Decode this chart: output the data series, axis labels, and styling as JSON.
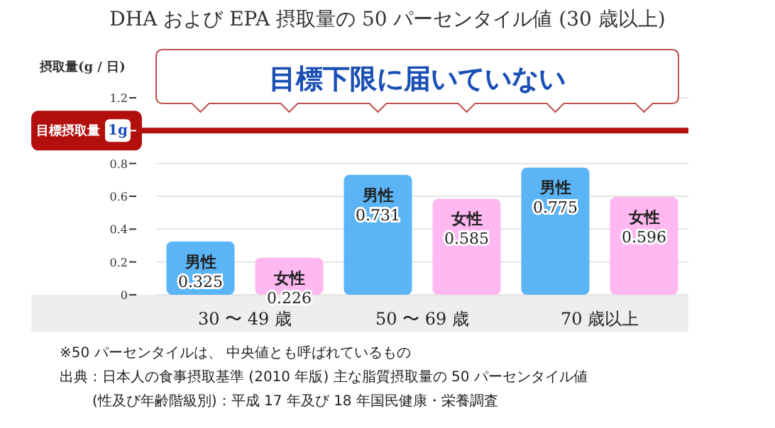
{
  "chart_data": {
    "type": "bar",
    "title": "DHA および EPA 摂取量の 50 パーセンタイル値 (30 歳以上)",
    "ylabel": "摂取量(g / 日)",
    "categories": [
      "30 〜 49 歳",
      "50 〜 69 歳",
      "70 歳以上"
    ],
    "series": [
      {
        "name": "男性",
        "color": "#5ab4f5",
        "values": [
          0.325,
          0.731,
          0.775
        ]
      },
      {
        "name": "女性",
        "color": "#ffb8f0",
        "values": [
          0.226,
          0.585,
          0.596
        ]
      }
    ],
    "ylim": [
      0,
      1.2
    ],
    "yticks": [
      0,
      0.2,
      0.4,
      0.6,
      0.8,
      {
        "value": 1,
        "label": "1g"
      },
      1.2
    ],
    "grid": "y",
    "data_labels": true,
    "ref_lines": [
      {
        "axis": "y",
        "value": 1,
        "label": "目標摂取量",
        "color": "#b40f0f"
      }
    ],
    "annotations": [
      "目標下限に届いていない",
      "※50 パーセンタイルは、 中央値とも呼ばれているもの",
      "出典：日本人の食事摂取基準 (2010 年版) 主な脂質摂取量の 50 パーセンタイル値",
      "(性及び年齢階級別)：平成 17 年及び 18 年国民健康・栄養調査"
    ]
  }
}
